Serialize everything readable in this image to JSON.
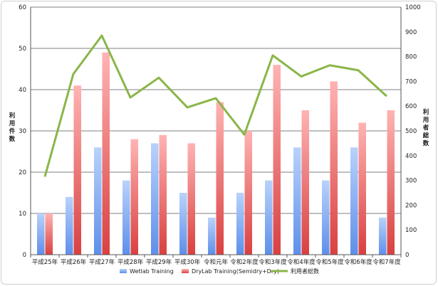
{
  "chart_data": {
    "type": "bar",
    "categories": [
      "平成25年",
      "平成26年",
      "平成27年",
      "平成28年",
      "平成29年",
      "平成30年",
      "令和元年",
      "令和2年度",
      "令和3年度",
      "令和4年度",
      "令和5年度",
      "令和6年度",
      "令和7年度"
    ],
    "series": [
      {
        "name": "Wetlab Training",
        "type": "bar",
        "axis": "left",
        "color": "#6f9ff0",
        "values": [
          10,
          14,
          26,
          18,
          27,
          15,
          9,
          15,
          18,
          26,
          18,
          26,
          9
        ]
      },
      {
        "name": "DryLab Training(Semidry+Dry)",
        "type": "bar",
        "axis": "left",
        "color": "#f07070",
        "values": [
          10,
          41,
          49,
          28,
          29,
          27,
          37,
          30,
          46,
          35,
          42,
          32,
          35
        ]
      },
      {
        "name": "利用者総数",
        "type": "line",
        "axis": "right",
        "color": "#8ab648",
        "values": [
          315,
          730,
          885,
          635,
          715,
          595,
          632,
          485,
          805,
          720,
          765,
          745,
          640
        ]
      }
    ],
    "ylabel": "利用件数",
    "y2label": "利用者総数",
    "ylim": [
      0,
      60
    ],
    "y2lim": [
      0,
      1000
    ],
    "yticks": [
      "0",
      "10",
      "20",
      "30",
      "40",
      "50",
      "60"
    ],
    "y2ticks": [
      "0",
      "100",
      "200",
      "300",
      "400",
      "500",
      "600",
      "700",
      "800",
      "900",
      "1000"
    ],
    "grid": "horizontal",
    "legend_position": "bottom"
  }
}
